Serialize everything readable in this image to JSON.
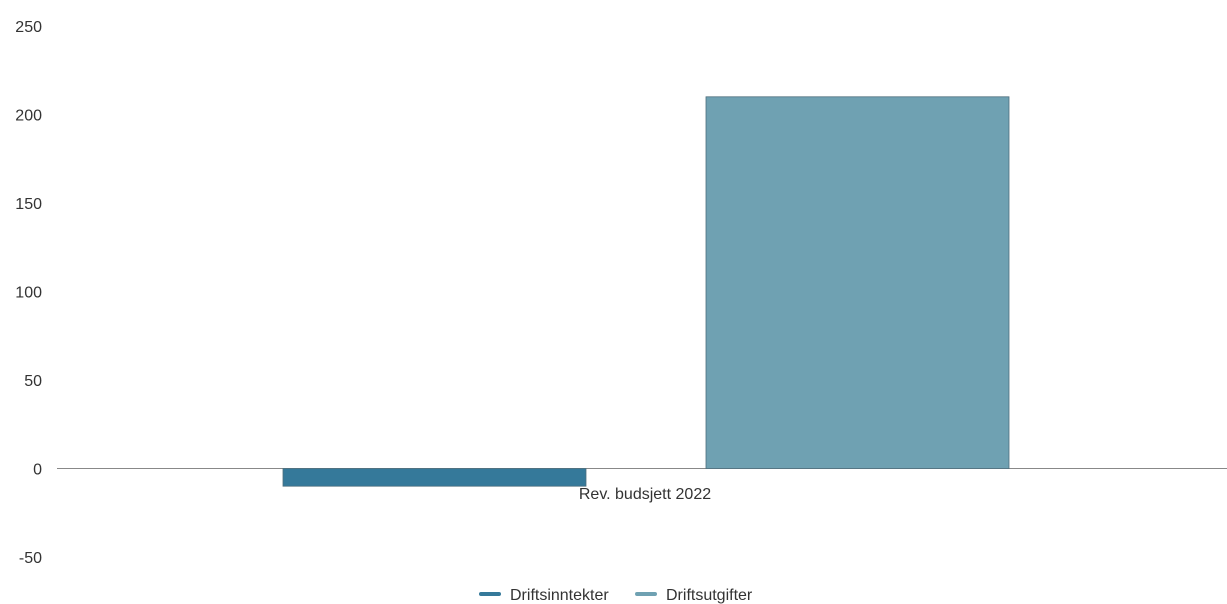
{
  "chart_data": {
    "type": "bar",
    "categories": [
      "Rev. budsjett 2022"
    ],
    "series": [
      {
        "name": "Driftsinntekter",
        "values": [
          -10
        ],
        "color": "#35799a"
      },
      {
        "name": "Driftsutgifter",
        "values": [
          210
        ],
        "color": "#6fa1b2"
      }
    ],
    "ylim": [
      -50,
      250
    ],
    "yticks": [
      "250",
      "200",
      "150",
      "100",
      "50",
      "0",
      "-50"
    ],
    "ytick_values": [
      250,
      200,
      150,
      100,
      50,
      0,
      -50
    ],
    "grid": false,
    "legend_position": "bottom-center"
  }
}
